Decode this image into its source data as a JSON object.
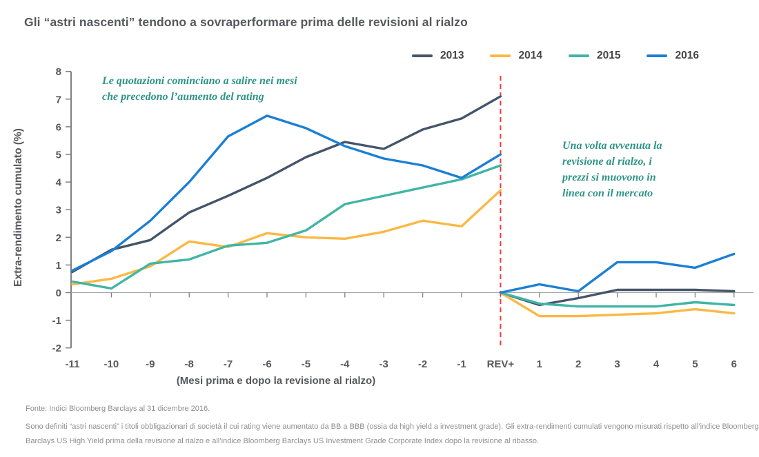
{
  "title": "Gli “astri nascenti” tendono a sovraperformare prima delle revisioni al rialzo",
  "chart_data": {
    "type": "line",
    "x_categories": [
      "-11",
      "-10",
      "-9",
      "-8",
      "-7",
      "-6",
      "-5",
      "-4",
      "-3",
      "-2",
      "-1",
      "REV+",
      "1",
      "2",
      "3",
      "4",
      "5",
      "6"
    ],
    "rebase_index": 11,
    "xlabel": "(Mesi prima e dopo la revisione al rialzo)",
    "ylabel": "Extra-rendimento cumulato (%)",
    "ylim": [
      -2,
      8
    ],
    "ytick_step": 1,
    "grid": "none",
    "legend_position": "top-right",
    "event_line": {
      "x_category": "REV+",
      "color": "#ff3333",
      "style": "dashed"
    },
    "series": [
      {
        "name": "2013",
        "color": "#44546a",
        "pre_upgrade": [
          0.75,
          1.55,
          1.9,
          2.9,
          3.5,
          4.15,
          4.9,
          5.45,
          5.2,
          5.9,
          6.3,
          7.1
        ],
        "post_upgrade": [
          0,
          -0.45,
          -0.2,
          0.1,
          0.1,
          0.1,
          0.05
        ]
      },
      {
        "name": "2014",
        "color": "#fbb843",
        "pre_upgrade": [
          0.3,
          0.5,
          0.95,
          1.85,
          1.65,
          2.15,
          2.0,
          1.95,
          2.2,
          2.6,
          2.4,
          3.7
        ],
        "post_upgrade": [
          0,
          -0.85,
          -0.85,
          -0.8,
          -0.75,
          -0.6,
          -0.75
        ]
      },
      {
        "name": "2015",
        "color": "#41b5a5",
        "pre_upgrade": [
          0.4,
          0.15,
          1.05,
          1.2,
          1.7,
          1.8,
          2.25,
          3.2,
          3.5,
          3.8,
          4.1,
          4.6
        ],
        "post_upgrade": [
          0,
          -0.4,
          -0.5,
          -0.5,
          -0.5,
          -0.35,
          -0.45
        ]
      },
      {
        "name": "2016",
        "color": "#1b7fd4",
        "pre_upgrade": [
          0.8,
          1.5,
          2.6,
          4.0,
          5.65,
          6.4,
          5.95,
          5.3,
          4.85,
          4.6,
          4.15,
          5.0
        ],
        "post_upgrade": [
          0,
          0.3,
          0.05,
          1.1,
          1.1,
          0.9,
          1.4
        ]
      }
    ],
    "annotations": [
      {
        "text": "Le quotazioni cominciano a salire nei mesi\nche precedono l’aumento del rating"
      },
      {
        "text": "Una volta avvenuta la\nrevisione al rialzo, i\nprezzi si muovono in\nlinea con il mercato"
      }
    ]
  },
  "footer": {
    "source": "Fonte: Indici Bloomberg Barclays al 31 dicembre 2016.",
    "note": "Sono definiti “astri nascenti” i titoli obbligazionari di società il cui rating viene aumentato da BB a BBB (ossia da high yield a investment grade). Gli extra-rendimenti cumulati vengono misurati rispetto all’indice Bloomberg Barclays US High Yield prima della revisione al rialzo e all’indice Bloomberg Barclays US Investment Grade Corporate Index dopo la revisione al ribasso."
  }
}
